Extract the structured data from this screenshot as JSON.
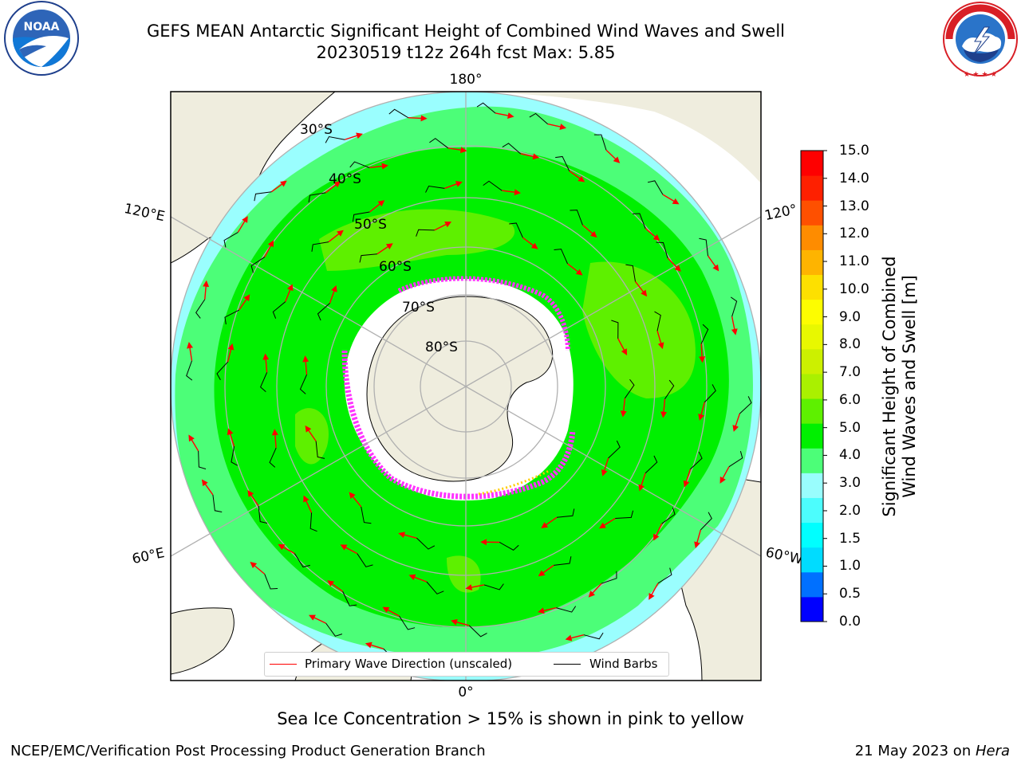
{
  "title": {
    "line1": "GEFS MEAN Antarctic Significant Height of Combined Wind Waves and Swell",
    "line2": "20230519 t12z 264h fcst   Max: 5.85"
  },
  "logos": {
    "left": "NOAA",
    "right": "NATIONAL WEATHER SERVICE"
  },
  "map": {
    "projection": "south-polar-stereographic",
    "longitude_labels": [
      "180°",
      "120°E",
      "120°",
      "60°E",
      "60°W",
      "0°"
    ],
    "latitude_labels": [
      "30°S",
      "40°S",
      "50°S",
      "60°S",
      "70°S",
      "80°S"
    ],
    "field_levels_m": [
      2.0,
      3.0,
      4.0,
      5.0
    ],
    "field_colors": {
      "2.0": "#9afefe",
      "3.0": "#4cfe78",
      "4.0": "#00f000",
      "5.0": "#5ef000"
    },
    "land_color": "#efedde",
    "ice_colors": [
      "#ff33ff",
      "#ffcc00"
    ],
    "arrow_color": "#ff0000",
    "barb_color": "#000000"
  },
  "legend": {
    "primary_wave": "Primary Wave Direction (unscaled)",
    "wind_barbs": "Wind Barbs"
  },
  "colorbar": {
    "label_line1": "Significant Height of Combined",
    "label_line2": "Wind Waves and Swell [m]",
    "ticks": [
      "15.0",
      "14.0",
      "13.0",
      "12.0",
      "11.0",
      "10.0",
      "9.0",
      "8.0",
      "7.0",
      "6.0",
      "5.0",
      "4.0",
      "3.0",
      "2.0",
      "1.5",
      "1.0",
      "0.5",
      "0.0"
    ],
    "colors": [
      "#0000ff",
      "#0070ff",
      "#00dcff",
      "#00ffff",
      "#4cfdfd",
      "#99fdfd",
      "#4cfe78",
      "#00f000",
      "#5ef000",
      "#aaf000",
      "#ccf000",
      "#e8f800",
      "#fdfd00",
      "#fde000",
      "#feb400",
      "#fe8c00",
      "#fe5000",
      "#fe2000",
      "#fe0000"
    ]
  },
  "caption": "Sea Ice Concentration > 15% is shown in pink to yellow",
  "footer": {
    "left": "NCEP/EMC/Verification Post Processing Product Generation Branch",
    "right_date": "21 May 2023 on ",
    "right_host": "Hera"
  }
}
